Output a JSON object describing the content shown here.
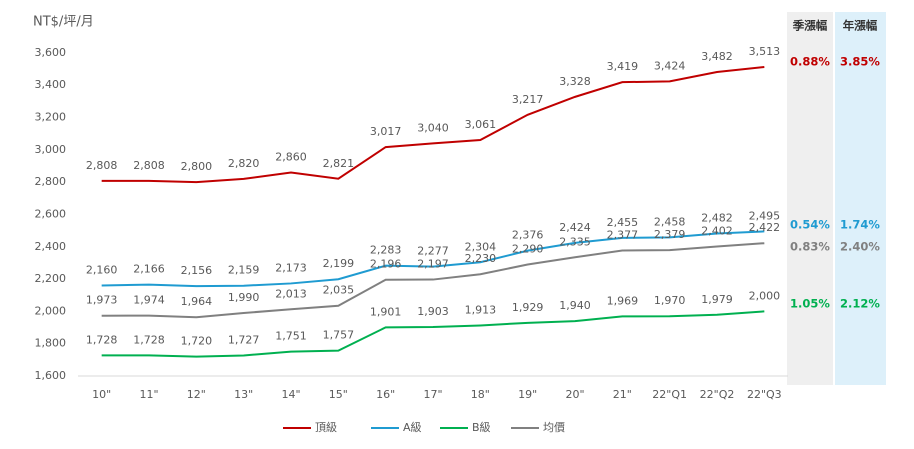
{
  "chart_data": {
    "type": "line",
    "y_label": "NT$/坪/月",
    "categories": [
      "10\"",
      "11\"",
      "12\"",
      "13\"",
      "14\"",
      "15\"",
      "16\"",
      "17\"",
      "18\"",
      "19\"",
      "20\"",
      "21\"",
      "22\"Q1",
      "22\"Q2",
      "22\"Q3"
    ],
    "series": [
      {
        "name": "頂級",
        "color": "#c00000",
        "values": [
          2808,
          2808,
          2800,
          2820,
          2860,
          2821,
          3017,
          3040,
          3061,
          3217,
          3328,
          3419,
          3424,
          3482,
          3513
        ],
        "value_labels": [
          "2,808",
          "2,808",
          "2,800",
          "2,820",
          "2,860",
          "2,821",
          "3,017",
          "3,040",
          "3,061",
          "3,217",
          "3,328",
          "3,419",
          "3,424",
          "3,482",
          "3,513"
        ]
      },
      {
        "name": "A級",
        "color": "#1f9bd1",
        "values": [
          2160,
          2166,
          2156,
          2159,
          2173,
          2199,
          2283,
          2277,
          2304,
          2376,
          2424,
          2455,
          2458,
          2482,
          2495
        ],
        "value_labels": [
          "2,160",
          "2,166",
          "2,156",
          "2,159",
          "2,173",
          "2,199",
          "2,283",
          "2,277",
          "2,304",
          "2,376",
          "2,424",
          "2,455",
          "2,458",
          "2,482",
          "2,495"
        ]
      },
      {
        "name": "B級",
        "color": "#00b050",
        "values": [
          1728,
          1728,
          1720,
          1727,
          1751,
          1757,
          1901,
          1903,
          1913,
          1929,
          1940,
          1969,
          1970,
          1979,
          2000
        ],
        "value_labels": [
          "1,728",
          "1,728",
          "1,720",
          "1,727",
          "1,751",
          "1,757",
          "1,901",
          "1,903",
          "1,913",
          "1,929",
          "1,940",
          "1,969",
          "1,970",
          "1,979",
          "2,000"
        ]
      },
      {
        "name": "均價",
        "color": "#808080",
        "values": [
          1973,
          1974,
          1964,
          1990,
          2013,
          2035,
          2196,
          2197,
          2230,
          2290,
          2335,
          2377,
          2379,
          2402,
          2422
        ],
        "value_labels": [
          "1,973",
          "1,974",
          "1,964",
          "1,990",
          "2,013",
          "2,035",
          "2,196",
          "2,197",
          "2,230",
          "2,290",
          "2,335",
          "2,377",
          "2,379",
          "2,402",
          "2,422"
        ]
      }
    ],
    "ylim": [
      1600,
      3680
    ],
    "yticks": [
      {
        "value": 1600,
        "label": "1,600"
      },
      {
        "value": 1800,
        "label": "1,800"
      },
      {
        "value": 2000,
        "label": "2,000"
      },
      {
        "value": 2200,
        "label": "2,200"
      },
      {
        "value": 2400,
        "label": "2,400"
      },
      {
        "value": 2600,
        "label": "2,600"
      },
      {
        "value": 2800,
        "label": "2,800"
      },
      {
        "value": 3000,
        "label": "3,000"
      },
      {
        "value": 3200,
        "label": "3,200"
      },
      {
        "value": 3400,
        "label": "3,400"
      },
      {
        "value": 3600,
        "label": "3,600"
      }
    ],
    "legend": "bottom",
    "side_table": {
      "headers": [
        "季漲幅",
        "年漲幅"
      ],
      "rows": [
        {
          "color": "#c00000",
          "cells": [
            "0.88%",
            "3.85%"
          ]
        },
        {
          "color": "#1f9bd1",
          "cells": [
            "0.54%",
            "1.74%"
          ]
        },
        {
          "color": "#808080",
          "cells": [
            "0.83%",
            "2.40%"
          ]
        },
        {
          "color": "#00b050",
          "cells": [
            "1.05%",
            "2.12%"
          ]
        }
      ]
    }
  }
}
